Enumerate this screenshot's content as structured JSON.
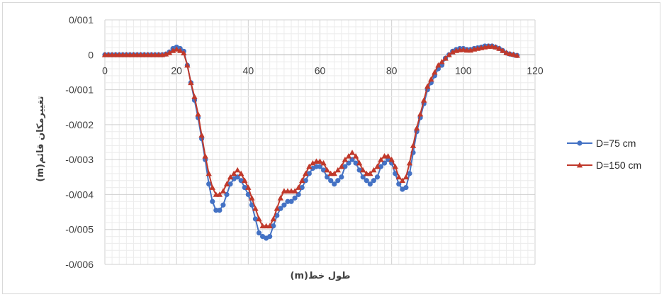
{
  "chart_data": {
    "type": "line",
    "xlabel": "طول خط(m)",
    "ylabel": "تغییرمکان قائم(m)",
    "xlim": [
      0,
      120
    ],
    "ylim": [
      -0.006,
      0.001
    ],
    "x_ticks": [
      "0",
      "20",
      "40",
      "60",
      "80",
      "100",
      "120"
    ],
    "y_ticks": [
      "0/001",
      "0",
      "-0/001",
      "-0/002",
      "-0/003",
      "-0/004",
      "-0/005",
      "-0/006"
    ],
    "grid": true,
    "legend_position": "right",
    "series": [
      {
        "name": "D=75 cm",
        "color": "#4472c4",
        "marker": "circle",
        "points": [
          [
            0,
            0
          ],
          [
            1,
            0
          ],
          [
            2,
            0
          ],
          [
            3,
            0
          ],
          [
            4,
            0
          ],
          [
            5,
            0
          ],
          [
            6,
            0
          ],
          [
            7,
            0
          ],
          [
            8,
            0
          ],
          [
            9,
            0
          ],
          [
            10,
            0
          ],
          [
            11,
            0
          ],
          [
            12,
            0
          ],
          [
            13,
            0
          ],
          [
            14,
            0
          ],
          [
            15,
            0
          ],
          [
            16,
            0
          ],
          [
            17,
            2e-05
          ],
          [
            18,
            8e-05
          ],
          [
            19,
            0.00018
          ],
          [
            20,
            0.00022
          ],
          [
            21,
            0.00018
          ],
          [
            22,
            0.0001
          ],
          [
            23,
            -0.0003
          ],
          [
            24,
            -0.0008
          ],
          [
            25,
            -0.0013
          ],
          [
            26,
            -0.0018
          ],
          [
            27,
            -0.0024
          ],
          [
            28,
            -0.003
          ],
          [
            29,
            -0.0037
          ],
          [
            30,
            -0.0042
          ],
          [
            31,
            -0.00445
          ],
          [
            32,
            -0.00445
          ],
          [
            33,
            -0.0043
          ],
          [
            34,
            -0.004
          ],
          [
            35,
            -0.0037
          ],
          [
            36,
            -0.00355
          ],
          [
            37,
            -0.0035
          ],
          [
            38,
            -0.0036
          ],
          [
            39,
            -0.0038
          ],
          [
            40,
            -0.004
          ],
          [
            41,
            -0.0043
          ],
          [
            42,
            -0.0047
          ],
          [
            43,
            -0.0051
          ],
          [
            44,
            -0.0052
          ],
          [
            45,
            -0.00525
          ],
          [
            46,
            -0.0052
          ],
          [
            47,
            -0.0049
          ],
          [
            48,
            -0.0046
          ],
          [
            49,
            -0.0044
          ],
          [
            50,
            -0.0043
          ],
          [
            51,
            -0.0042
          ],
          [
            52,
            -0.0042
          ],
          [
            53,
            -0.0041
          ],
          [
            54,
            -0.004
          ],
          [
            55,
            -0.0038
          ],
          [
            56,
            -0.0036
          ],
          [
            57,
            -0.0034
          ],
          [
            58,
            -0.00325
          ],
          [
            59,
            -0.0032
          ],
          [
            60,
            -0.0032
          ],
          [
            61,
            -0.0033
          ],
          [
            62,
            -0.0035
          ],
          [
            63,
            -0.0036
          ],
          [
            64,
            -0.0037
          ],
          [
            65,
            -0.0036
          ],
          [
            66,
            -0.0035
          ],
          [
            67,
            -0.0032
          ],
          [
            68,
            -0.0031
          ],
          [
            69,
            -0.003
          ],
          [
            70,
            -0.0031
          ],
          [
            71,
            -0.0033
          ],
          [
            72,
            -0.0035
          ],
          [
            73,
            -0.0036
          ],
          [
            74,
            -0.0037
          ],
          [
            75,
            -0.0036
          ],
          [
            76,
            -0.0035
          ],
          [
            77,
            -0.0032
          ],
          [
            78,
            -0.0031
          ],
          [
            79,
            -0.003
          ],
          [
            80,
            -0.0031
          ],
          [
            81,
            -0.0034
          ],
          [
            82,
            -0.0037
          ],
          [
            83,
            -0.00385
          ],
          [
            84,
            -0.0038
          ],
          [
            85,
            -0.0034
          ],
          [
            86,
            -0.0028
          ],
          [
            87,
            -0.0022
          ],
          [
            88,
            -0.0018
          ],
          [
            89,
            -0.0014
          ],
          [
            90,
            -0.001
          ],
          [
            91,
            -0.0008
          ],
          [
            92,
            -0.0006
          ],
          [
            93,
            -0.0004
          ],
          [
            94,
            -0.0003
          ],
          [
            95,
            -0.0001
          ],
          [
            96,
            0
          ],
          [
            97,
            0.0001
          ],
          [
            98,
            0.00015
          ],
          [
            99,
            0.00018
          ],
          [
            100,
            0.00018
          ],
          [
            101,
            0.00015
          ],
          [
            102,
            0.00015
          ],
          [
            103,
            0.00018
          ],
          [
            104,
            0.0002
          ],
          [
            105,
            0.00022
          ],
          [
            106,
            0.00025
          ],
          [
            107,
            0.00025
          ],
          [
            108,
            0.00025
          ],
          [
            109,
            0.00022
          ],
          [
            110,
            0.00018
          ],
          [
            111,
            0.00012
          ],
          [
            112,
            5e-05
          ],
          [
            113,
            2e-05
          ],
          [
            114,
            0
          ],
          [
            115,
            -2e-05
          ]
        ]
      },
      {
        "name": "D=150 cm",
        "color": "#c0392b",
        "marker": "triangle",
        "points": [
          [
            0,
            0
          ],
          [
            1,
            0
          ],
          [
            2,
            0
          ],
          [
            3,
            0
          ],
          [
            4,
            0
          ],
          [
            5,
            0
          ],
          [
            6,
            0
          ],
          [
            7,
            0
          ],
          [
            8,
            0
          ],
          [
            9,
            0
          ],
          [
            10,
            0
          ],
          [
            11,
            0
          ],
          [
            12,
            0
          ],
          [
            13,
            0
          ],
          [
            14,
            0
          ],
          [
            15,
            0
          ],
          [
            16,
            0
          ],
          [
            17,
            2e-05
          ],
          [
            18,
            6e-05
          ],
          [
            19,
            0.00012
          ],
          [
            20,
            0.00016
          ],
          [
            21,
            0.00012
          ],
          [
            22,
            5e-05
          ],
          [
            23,
            -0.0003
          ],
          [
            24,
            -0.0008
          ],
          [
            25,
            -0.0012
          ],
          [
            26,
            -0.0017
          ],
          [
            27,
            -0.0023
          ],
          [
            28,
            -0.0029
          ],
          [
            29,
            -0.0034
          ],
          [
            30,
            -0.0038
          ],
          [
            31,
            -0.004
          ],
          [
            32,
            -0.004
          ],
          [
            33,
            -0.0039
          ],
          [
            34,
            -0.0037
          ],
          [
            35,
            -0.0035
          ],
          [
            36,
            -0.0034
          ],
          [
            37,
            -0.0033
          ],
          [
            38,
            -0.0034
          ],
          [
            39,
            -0.0036
          ],
          [
            40,
            -0.0038
          ],
          [
            41,
            -0.0041
          ],
          [
            42,
            -0.0044
          ],
          [
            43,
            -0.0047
          ],
          [
            44,
            -0.0049
          ],
          [
            45,
            -0.0049
          ],
          [
            46,
            -0.0049
          ],
          [
            47,
            -0.0047
          ],
          [
            48,
            -0.0044
          ],
          [
            49,
            -0.0041
          ],
          [
            50,
            -0.0039
          ],
          [
            51,
            -0.0039
          ],
          [
            52,
            -0.0039
          ],
          [
            53,
            -0.0039
          ],
          [
            54,
            -0.0038
          ],
          [
            55,
            -0.0036
          ],
          [
            56,
            -0.0034
          ],
          [
            57,
            -0.0032
          ],
          [
            58,
            -0.0031
          ],
          [
            59,
            -0.00305
          ],
          [
            60,
            -0.00305
          ],
          [
            61,
            -0.0031
          ],
          [
            62,
            -0.0033
          ],
          [
            63,
            -0.0034
          ],
          [
            64,
            -0.0034
          ],
          [
            65,
            -0.0033
          ],
          [
            66,
            -0.0032
          ],
          [
            67,
            -0.003
          ],
          [
            68,
            -0.0029
          ],
          [
            69,
            -0.0028
          ],
          [
            70,
            -0.0029
          ],
          [
            71,
            -0.0031
          ],
          [
            72,
            -0.0033
          ],
          [
            73,
            -0.0034
          ],
          [
            74,
            -0.0034
          ],
          [
            75,
            -0.0033
          ],
          [
            76,
            -0.0032
          ],
          [
            77,
            -0.003
          ],
          [
            78,
            -0.0029
          ],
          [
            79,
            -0.0029
          ],
          [
            80,
            -0.003
          ],
          [
            81,
            -0.0032
          ],
          [
            82,
            -0.0035
          ],
          [
            83,
            -0.0036
          ],
          [
            84,
            -0.0035
          ],
          [
            85,
            -0.0031
          ],
          [
            86,
            -0.0026
          ],
          [
            87,
            -0.0021
          ],
          [
            88,
            -0.0017
          ],
          [
            89,
            -0.0013
          ],
          [
            90,
            -0.0009
          ],
          [
            91,
            -0.0007
          ],
          [
            92,
            -0.0005
          ],
          [
            93,
            -0.0003
          ],
          [
            94,
            -0.0002
          ],
          [
            95,
            -0.0001
          ],
          [
            96,
            0
          ],
          [
            97,
            8e-05
          ],
          [
            98,
            0.00012
          ],
          [
            99,
            0.00014
          ],
          [
            100,
            0.00015
          ],
          [
            101,
            0.00013
          ],
          [
            102,
            0.00013
          ],
          [
            103,
            0.00016
          ],
          [
            104,
            0.00018
          ],
          [
            105,
            0.0002
          ],
          [
            106,
            0.00022
          ],
          [
            107,
            0.00024
          ],
          [
            108,
            0.00024
          ],
          [
            109,
            0.00022
          ],
          [
            110,
            0.00018
          ],
          [
            111,
            0.00012
          ],
          [
            112,
            6e-05
          ],
          [
            113,
            3e-05
          ],
          [
            114,
            1e-05
          ],
          [
            115,
            -2e-05
          ]
        ]
      }
    ]
  }
}
